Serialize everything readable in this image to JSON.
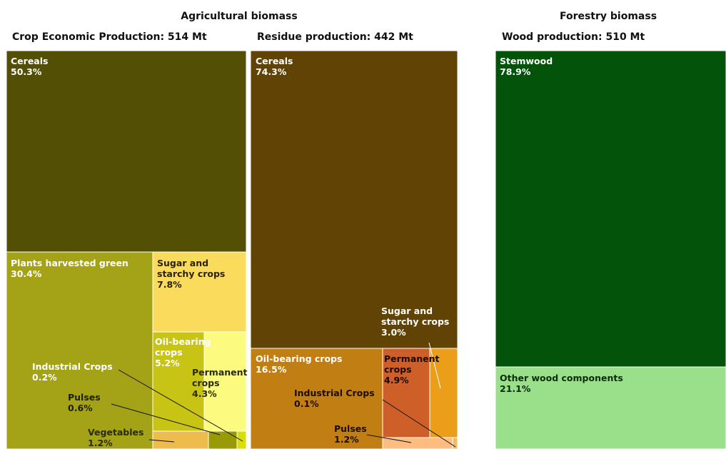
{
  "sections": {
    "agricultural": "Agricultural biomass",
    "forestry": "Forestry biomass"
  },
  "chart_data": [
    {
      "type": "treemap",
      "title": "Crop Economic Production: 514 Mt",
      "section": "Agricultural biomass",
      "total": 514,
      "unit": "Mt",
      "items": [
        {
          "name": "Cereals",
          "value": 50.3,
          "label": "Cereals",
          "value_label": "50.3%",
          "color": "#535005"
        },
        {
          "name": "Plants harvested green",
          "value": 30.4,
          "label": "Plants harvested green",
          "value_label": "30.4%",
          "color": "#a4a318"
        },
        {
          "name": "Sugar and starchy crops",
          "value": 7.8,
          "label": "Sugar and\nstarchy crops",
          "value_label": "7.8%",
          "color": "#fbdb5c"
        },
        {
          "name": "Oil-bearing crops",
          "value": 5.2,
          "label": "Oil-bearing\ncrops",
          "value_label": "5.2%",
          "color": "#c7c415"
        },
        {
          "name": "Permanent crops",
          "value": 4.3,
          "label": "Permanent\ncrops",
          "value_label": "4.3%",
          "color": "#fcfb80"
        },
        {
          "name": "Vegetables",
          "value": 1.2,
          "label": "Vegetables",
          "value_label": "1.2%",
          "color": "#eebc4d"
        },
        {
          "name": "Pulses",
          "value": 0.6,
          "label": "Pulses",
          "value_label": "0.6%",
          "color": "#989a06"
        },
        {
          "name": "Industrial Crops",
          "value": 0.2,
          "label": "Industrial Crops",
          "value_label": "0.2%",
          "color": "#dcdc06"
        }
      ]
    },
    {
      "type": "treemap",
      "title": "Residue production: 442 Mt",
      "section": "Agricultural biomass",
      "total": 442,
      "unit": "Mt",
      "items": [
        {
          "name": "Cereals",
          "value": 74.3,
          "label": "Cereals",
          "value_label": "74.3%",
          "color": "#624306"
        },
        {
          "name": "Oil-bearing crops",
          "value": 16.5,
          "label": "Oil-bearing crops",
          "value_label": "16.5%",
          "color": "#c17e13"
        },
        {
          "name": "Permanent crops",
          "value": 4.9,
          "label": "Permanent\ncrops",
          "value_label": "4.9%",
          "color": "#cf5f29"
        },
        {
          "name": "Sugar and starchy crops",
          "value": 3.0,
          "label": "Sugar and\nstarchy crops",
          "value_label": "3.0%",
          "color": "#eb9e1a"
        },
        {
          "name": "Pulses",
          "value": 1.2,
          "label": "Pulses",
          "value_label": "1.2%",
          "color": "#fdbd81"
        },
        {
          "name": "Industrial Crops",
          "value": 0.1,
          "label": "Industrial Crops",
          "value_label": "0.1%",
          "color": "#f0bb62"
        }
      ]
    },
    {
      "type": "treemap",
      "title": "Wood production: 510 Mt",
      "section": "Forestry biomass",
      "total": 510,
      "unit": "Mt",
      "items": [
        {
          "name": "Stemwood",
          "value": 78.9,
          "label": "Stemwood",
          "value_label": "78.9%",
          "color": "#03530a"
        },
        {
          "name": "Other wood components",
          "value": 21.1,
          "label": "Other wood components",
          "value_label": "21.1%",
          "color": "#9ae08b"
        }
      ]
    }
  ]
}
